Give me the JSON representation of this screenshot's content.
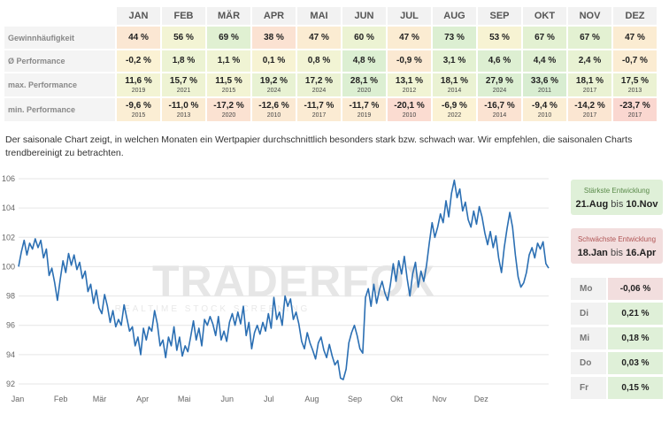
{
  "table": {
    "months": [
      "JAN",
      "FEB",
      "MÄR",
      "APR",
      "MAI",
      "JUN",
      "JUL",
      "AUG",
      "SEP",
      "OKT",
      "NOV",
      "DEZ"
    ],
    "rows": [
      {
        "label": "Gewinnhäufigkeit",
        "cells": [
          {
            "v": "44 %",
            "c": "#fbe7d3"
          },
          {
            "v": "56 %",
            "c": "#f3f4d4"
          },
          {
            "v": "69 %",
            "c": "#e0f0d2"
          },
          {
            "v": "38 %",
            "c": "#fbe2d2"
          },
          {
            "v": "47 %",
            "c": "#fbecd2"
          },
          {
            "v": "60 %",
            "c": "#ecf3d3"
          },
          {
            "v": "47 %",
            "c": "#fbecd2"
          },
          {
            "v": "73 %",
            "c": "#dcefd2"
          },
          {
            "v": "53 %",
            "c": "#f7f3d3"
          },
          {
            "v": "67 %",
            "c": "#e3f1d2"
          },
          {
            "v": "67 %",
            "c": "#e3f1d2"
          },
          {
            "v": "47 %",
            "c": "#fbecd2"
          }
        ]
      },
      {
        "label": "Ø Performance",
        "cells": [
          {
            "v": "-0,2 %",
            "c": "#fbf2d4"
          },
          {
            "v": "1,8 %",
            "c": "#ecf3d3"
          },
          {
            "v": "1,1 %",
            "c": "#f0f4d4"
          },
          {
            "v": "0,1 %",
            "c": "#f7f3d3"
          },
          {
            "v": "0,8 %",
            "c": "#f2f4d4"
          },
          {
            "v": "4,8 %",
            "c": "#dcefd2"
          },
          {
            "v": "-0,9 %",
            "c": "#fbe9d2"
          },
          {
            "v": "3,1 %",
            "c": "#e3f1d2"
          },
          {
            "v": "4,6 %",
            "c": "#ddefd2"
          },
          {
            "v": "4,4 %",
            "c": "#dfefd2"
          },
          {
            "v": "2,4 %",
            "c": "#e8f2d3"
          },
          {
            "v": "-0,7 %",
            "c": "#fbecd2"
          }
        ]
      },
      {
        "label": "max. Performance",
        "cells": [
          {
            "v": "11,6 %",
            "y": "2019",
            "c": "#f3f4d4"
          },
          {
            "v": "15,7 %",
            "y": "2021",
            "c": "#eef3d3"
          },
          {
            "v": "11,5 %",
            "y": "2015",
            "c": "#f3f4d4"
          },
          {
            "v": "19,2 %",
            "y": "2024",
            "c": "#e8f2d3"
          },
          {
            "v": "17,2 %",
            "y": "2024",
            "c": "#ebf2d3"
          },
          {
            "v": "28,1 %",
            "y": "2020",
            "c": "#dcefd2"
          },
          {
            "v": "13,1 %",
            "y": "2012",
            "c": "#f1f4d4"
          },
          {
            "v": "18,1 %",
            "y": "2014",
            "c": "#eaf2d3"
          },
          {
            "v": "27,9 %",
            "y": "2024",
            "c": "#dcefd2"
          },
          {
            "v": "33,6 %",
            "y": "2011",
            "c": "#d8edd1"
          },
          {
            "v": "18,1 %",
            "y": "2017",
            "c": "#eaf2d3"
          },
          {
            "v": "17,5 %",
            "y": "2013",
            "c": "#ebf2d3"
          }
        ]
      },
      {
        "label": "min. Performance",
        "cells": [
          {
            "v": "-9,6 %",
            "y": "2015",
            "c": "#fbeed4"
          },
          {
            "v": "-11,0 %",
            "y": "2013",
            "c": "#fbecd3"
          },
          {
            "v": "-17,2 %",
            "y": "2020",
            "c": "#fbe2d2"
          },
          {
            "v": "-12,6 %",
            "y": "2010",
            "c": "#fbe9d3"
          },
          {
            "v": "-11,7 %",
            "y": "2017",
            "c": "#fbebd3"
          },
          {
            "v": "-11,7 %",
            "y": "2019",
            "c": "#fbebd3"
          },
          {
            "v": "-20,1 %",
            "y": "2010",
            "c": "#fbdcd1"
          },
          {
            "v": "-6,9 %",
            "y": "2022",
            "c": "#fbf2d4"
          },
          {
            "v": "-16,7 %",
            "y": "2014",
            "c": "#fbe3d2"
          },
          {
            "v": "-9,4 %",
            "y": "2010",
            "c": "#fbeed4"
          },
          {
            "v": "-14,2 %",
            "y": "2017",
            "c": "#fbe6d2"
          },
          {
            "v": "-23,7 %",
            "y": "2017",
            "c": "#fad7d0"
          }
        ]
      }
    ]
  },
  "description": "Der saisonale Chart zeigt, in welchen Monaten ein Wertpapier durchschnittlich besonders stark bzw. schwach war. Wir empfehlen, die saisonalen Charts trendbereinigt zu betrachten.",
  "chart_data": {
    "type": "line",
    "ylim": [
      92,
      106
    ],
    "yticks": [
      92,
      94,
      96,
      98,
      100,
      102,
      104,
      106
    ],
    "xticks": [
      {
        "label": "Jan",
        "doy": 1
      },
      {
        "label": "Feb",
        "doy": 32
      },
      {
        "label": "Mär",
        "doy": 60
      },
      {
        "label": "Apr",
        "doy": 91
      },
      {
        "label": "Mai",
        "doy": 121
      },
      {
        "label": "Jun",
        "doy": 152
      },
      {
        "label": "Jul",
        "doy": 182
      },
      {
        "label": "Aug",
        "doy": 213
      },
      {
        "label": "Sep",
        "doy": 244
      },
      {
        "label": "Okt",
        "doy": 274
      },
      {
        "label": "Nov",
        "doy": 305
      },
      {
        "label": "Dez",
        "doy": 335
      }
    ],
    "series": [
      {
        "color": "#2b6fb3",
        "points": [
          [
            1,
            100
          ],
          [
            3,
            101
          ],
          [
            5,
            101.8
          ],
          [
            7,
            100.8
          ],
          [
            9,
            101.6
          ],
          [
            11,
            101.2
          ],
          [
            13,
            101.9
          ],
          [
            15,
            101.3
          ],
          [
            17,
            101.8
          ],
          [
            19,
            100.6
          ],
          [
            21,
            101.2
          ],
          [
            23,
            99.4
          ],
          [
            25,
            99.9
          ],
          [
            27,
            98.9
          ],
          [
            29,
            97.7
          ],
          [
            31,
            99.1
          ],
          [
            33,
            100.4
          ],
          [
            35,
            99.6
          ],
          [
            37,
            100.9
          ],
          [
            39,
            100.1
          ],
          [
            41,
            100.8
          ],
          [
            43,
            99.8
          ],
          [
            45,
            100.3
          ],
          [
            47,
            99.2
          ],
          [
            49,
            99.7
          ],
          [
            51,
            98.3
          ],
          [
            53,
            98.8
          ],
          [
            55,
            97.5
          ],
          [
            57,
            98.4
          ],
          [
            59,
            97.2
          ],
          [
            61,
            96.8
          ],
          [
            63,
            98.1
          ],
          [
            65,
            97.3
          ],
          [
            67,
            96.2
          ],
          [
            69,
            97.0
          ],
          [
            71,
            95.9
          ],
          [
            73,
            96.4
          ],
          [
            75,
            96.0
          ],
          [
            77,
            97.4
          ],
          [
            79,
            96.5
          ],
          [
            81,
            95.6
          ],
          [
            83,
            95.9
          ],
          [
            85,
            94.6
          ],
          [
            87,
            95.2
          ],
          [
            89,
            94.0
          ],
          [
            91,
            95.8
          ],
          [
            93,
            95.0
          ],
          [
            95,
            95.9
          ],
          [
            97,
            95.6
          ],
          [
            99,
            97.0
          ],
          [
            101,
            96.1
          ],
          [
            103,
            94.6
          ],
          [
            105,
            95.0
          ],
          [
            107,
            93.8
          ],
          [
            109,
            95.2
          ],
          [
            111,
            94.6
          ],
          [
            113,
            95.9
          ],
          [
            115,
            94.3
          ],
          [
            117,
            95.2
          ],
          [
            119,
            93.9
          ],
          [
            121,
            94.6
          ],
          [
            123,
            94.2
          ],
          [
            125,
            95.2
          ],
          [
            127,
            96.3
          ],
          [
            129,
            95.0
          ],
          [
            131,
            95.8
          ],
          [
            133,
            94.6
          ],
          [
            135,
            96.4
          ],
          [
            137,
            96.0
          ],
          [
            139,
            96.6
          ],
          [
            141,
            96.1
          ],
          [
            143,
            95.3
          ],
          [
            145,
            96.6
          ],
          [
            147,
            95.0
          ],
          [
            149,
            95.6
          ],
          [
            151,
            94.9
          ],
          [
            153,
            96.2
          ],
          [
            155,
            96.8
          ],
          [
            157,
            96.0
          ],
          [
            159,
            96.9
          ],
          [
            161,
            96.1
          ],
          [
            163,
            97.3
          ],
          [
            165,
            95.3
          ],
          [
            167,
            96.2
          ],
          [
            169,
            94.4
          ],
          [
            171,
            95.5
          ],
          [
            173,
            96.0
          ],
          [
            175,
            95.4
          ],
          [
            177,
            96.2
          ],
          [
            179,
            95.6
          ],
          [
            181,
            96.8
          ],
          [
            183,
            95.8
          ],
          [
            185,
            97.9
          ],
          [
            187,
            96.4
          ],
          [
            189,
            96.9
          ],
          [
            191,
            96.0
          ],
          [
            193,
            98.0
          ],
          [
            195,
            97.3
          ],
          [
            197,
            97.8
          ],
          [
            199,
            96.4
          ],
          [
            201,
            96.9
          ],
          [
            203,
            96.1
          ],
          [
            205,
            94.9
          ],
          [
            207,
            94.4
          ],
          [
            209,
            95.5
          ],
          [
            211,
            94.8
          ],
          [
            213,
            94.3
          ],
          [
            215,
            93.7
          ],
          [
            217,
            94.8
          ],
          [
            219,
            95.2
          ],
          [
            221,
            94.3
          ],
          [
            223,
            93.8
          ],
          [
            225,
            94.7
          ],
          [
            227,
            93.9
          ],
          [
            229,
            93.3
          ],
          [
            231,
            93.6
          ],
          [
            233,
            92.4
          ],
          [
            235,
            92.3
          ],
          [
            237,
            93.0
          ],
          [
            239,
            94.8
          ],
          [
            241,
            95.5
          ],
          [
            243,
            96.0
          ],
          [
            245,
            95.3
          ],
          [
            247,
            94.4
          ],
          [
            249,
            94.1
          ],
          [
            251,
            97.9
          ],
          [
            253,
            98.5
          ],
          [
            255,
            97.3
          ],
          [
            257,
            98.8
          ],
          [
            259,
            97.5
          ],
          [
            261,
            98.4
          ],
          [
            263,
            99.0
          ],
          [
            265,
            98.2
          ],
          [
            267,
            97.7
          ],
          [
            269,
            98.8
          ],
          [
            271,
            100.2
          ],
          [
            273,
            99.0
          ],
          [
            275,
            100.4
          ],
          [
            277,
            99.5
          ],
          [
            279,
            100.7
          ],
          [
            281,
            99.2
          ],
          [
            283,
            98.0
          ],
          [
            285,
            99.5
          ],
          [
            287,
            100.3
          ],
          [
            289,
            98.6
          ],
          [
            291,
            99.7
          ],
          [
            293,
            99.0
          ],
          [
            295,
            100.1
          ],
          [
            297,
            101.6
          ],
          [
            299,
            103.0
          ],
          [
            301,
            102.0
          ],
          [
            303,
            102.7
          ],
          [
            305,
            103.6
          ],
          [
            307,
            103.0
          ],
          [
            309,
            104.5
          ],
          [
            311,
            103.4
          ],
          [
            313,
            105.0
          ],
          [
            315,
            105.9
          ],
          [
            317,
            104.7
          ],
          [
            319,
            105.3
          ],
          [
            321,
            103.8
          ],
          [
            323,
            104.4
          ],
          [
            325,
            103.2
          ],
          [
            327,
            102.7
          ],
          [
            329,
            103.8
          ],
          [
            331,
            102.9
          ],
          [
            333,
            104.1
          ],
          [
            335,
            103.4
          ],
          [
            337,
            102.3
          ],
          [
            339,
            101.5
          ],
          [
            341,
            102.4
          ],
          [
            343,
            101.3
          ],
          [
            345,
            102.1
          ],
          [
            347,
            100.6
          ],
          [
            349,
            99.6
          ],
          [
            351,
            101.3
          ],
          [
            353,
            102.6
          ],
          [
            355,
            103.7
          ],
          [
            357,
            102.7
          ],
          [
            359,
            100.8
          ],
          [
            361,
            99.3
          ],
          [
            363,
            98.6
          ],
          [
            365,
            98.9
          ],
          [
            367,
            99.6
          ],
          [
            369,
            100.8
          ],
          [
            371,
            101.3
          ],
          [
            373,
            100.6
          ],
          [
            375,
            101.6
          ],
          [
            377,
            101.2
          ],
          [
            379,
            101.7
          ],
          [
            381,
            100.2
          ],
          [
            383,
            99.9
          ]
        ]
      }
    ]
  },
  "strongest": {
    "title": "Stärkste Entwicklung",
    "from": "21.Aug",
    "sep": "bis",
    "to": "10.Nov"
  },
  "weakest": {
    "title": "Schwächste Entwicklung",
    "from": "18.Jan",
    "sep": "bis",
    "to": "16.Apr"
  },
  "weekdays": [
    {
      "day": "Mo",
      "value": "-0,06 %",
      "color": "#f2dede"
    },
    {
      "day": "Di",
      "value": "0,21 %",
      "color": "#dff0d8"
    },
    {
      "day": "Mi",
      "value": "0,18 %",
      "color": "#dff0d8"
    },
    {
      "day": "Do",
      "value": "0,03 %",
      "color": "#dff0d8"
    },
    {
      "day": "Fr",
      "value": "0,15 %",
      "color": "#dff0d8"
    }
  ]
}
